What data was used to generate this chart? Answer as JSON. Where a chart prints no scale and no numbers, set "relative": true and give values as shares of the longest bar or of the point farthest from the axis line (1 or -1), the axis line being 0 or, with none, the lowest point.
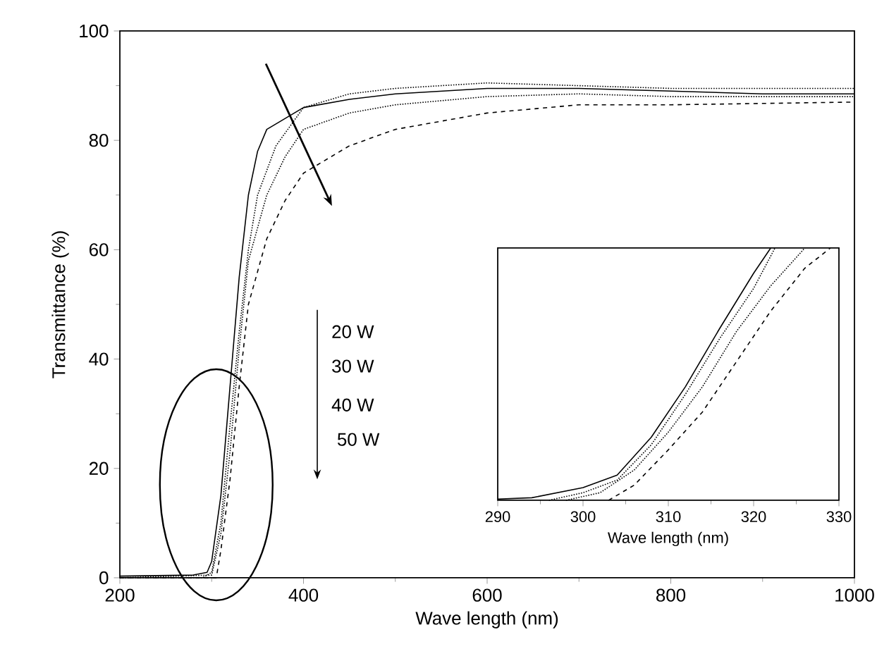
{
  "chart_data": [
    {
      "type": "line",
      "xlabel": "Wave length (nm)",
      "ylabel": "Transmittance (%)",
      "xlim": [
        200,
        1000
      ],
      "ylim": [
        0,
        100
      ],
      "xticks": [
        200,
        400,
        600,
        800,
        1000
      ],
      "yticks": [
        0,
        20,
        40,
        60,
        80,
        100
      ],
      "grid": false,
      "annotations": [
        "20 W",
        "30 W",
        "40 W",
        "50 W"
      ],
      "series": [
        {
          "color": "#000000",
          "line_style": "solid",
          "x": [
            200,
            280,
            295,
            300,
            310,
            320,
            330,
            340,
            350,
            360,
            380,
            400,
            450,
            500,
            600,
            700,
            800,
            900,
            1000
          ],
          "values": [
            0.3,
            0.5,
            1,
            3,
            15,
            35,
            55,
            70,
            78,
            82,
            84,
            86,
            87.5,
            88.5,
            89.5,
            89.5,
            89,
            88.5,
            88.5
          ]
        },
        {
          "color": "#000000",
          "line_style": "dotted",
          "x": [
            200,
            290,
            300,
            310,
            320,
            330,
            340,
            350,
            370,
            400,
            450,
            500,
            600,
            700,
            800,
            1000
          ],
          "values": [
            0,
            0,
            1,
            10,
            28,
            45,
            60,
            70,
            79,
            86,
            88.5,
            89.5,
            90.5,
            90,
            89.5,
            89.5
          ]
        },
        {
          "color": "#000000",
          "line_style": "dotted",
          "x": [
            200,
            300,
            310,
            320,
            330,
            340,
            360,
            380,
            400,
            450,
            500,
            600,
            700,
            800,
            1000
          ],
          "values": [
            0,
            0.5,
            8,
            23,
            42,
            58,
            70,
            77,
            82,
            85,
            86.5,
            88,
            88.5,
            88,
            88
          ]
        },
        {
          "color": "#000000",
          "line_style": "dashed",
          "x": [
            200,
            305,
            310,
            320,
            330,
            340,
            360,
            380,
            400,
            450,
            500,
            600,
            700,
            800,
            1000
          ],
          "values": [
            0,
            0,
            5,
            18,
            35,
            50,
            62,
            69,
            74,
            79,
            82,
            85,
            86.5,
            86.5,
            87
          ]
        }
      ]
    },
    {
      "type": "line",
      "xlabel": "Wave length (nm)",
      "xlim": [
        290,
        330
      ],
      "xticks": [
        290,
        300,
        310,
        320,
        330
      ],
      "relative": true,
      "grid": false,
      "series": [
        {
          "color": "#000000",
          "line_style": "solid",
          "x": [
            290,
            294,
            300,
            304,
            308,
            312,
            316,
            320,
            322
          ],
          "values": [
            0.005,
            0.01,
            0.05,
            0.1,
            0.25,
            0.45,
            0.68,
            0.9,
            1
          ]
        },
        {
          "color": "#000000",
          "line_style": "dotted",
          "x": [
            296,
            300,
            304,
            308,
            312,
            316,
            320,
            322.5
          ],
          "values": [
            0,
            0.03,
            0.08,
            0.22,
            0.42,
            0.64,
            0.84,
            1
          ]
        },
        {
          "color": "#000000",
          "line_style": "dotted",
          "x": [
            298,
            302,
            306,
            310,
            314,
            318,
            322,
            326
          ],
          "values": [
            0,
            0.03,
            0.12,
            0.27,
            0.45,
            0.67,
            0.85,
            1
          ]
        },
        {
          "color": "#000000",
          "line_style": "dashed",
          "x": [
            303,
            306,
            310,
            314,
            318,
            322,
            326,
            329
          ],
          "values": [
            0,
            0.06,
            0.2,
            0.35,
            0.55,
            0.75,
            0.92,
            1
          ]
        }
      ]
    }
  ]
}
